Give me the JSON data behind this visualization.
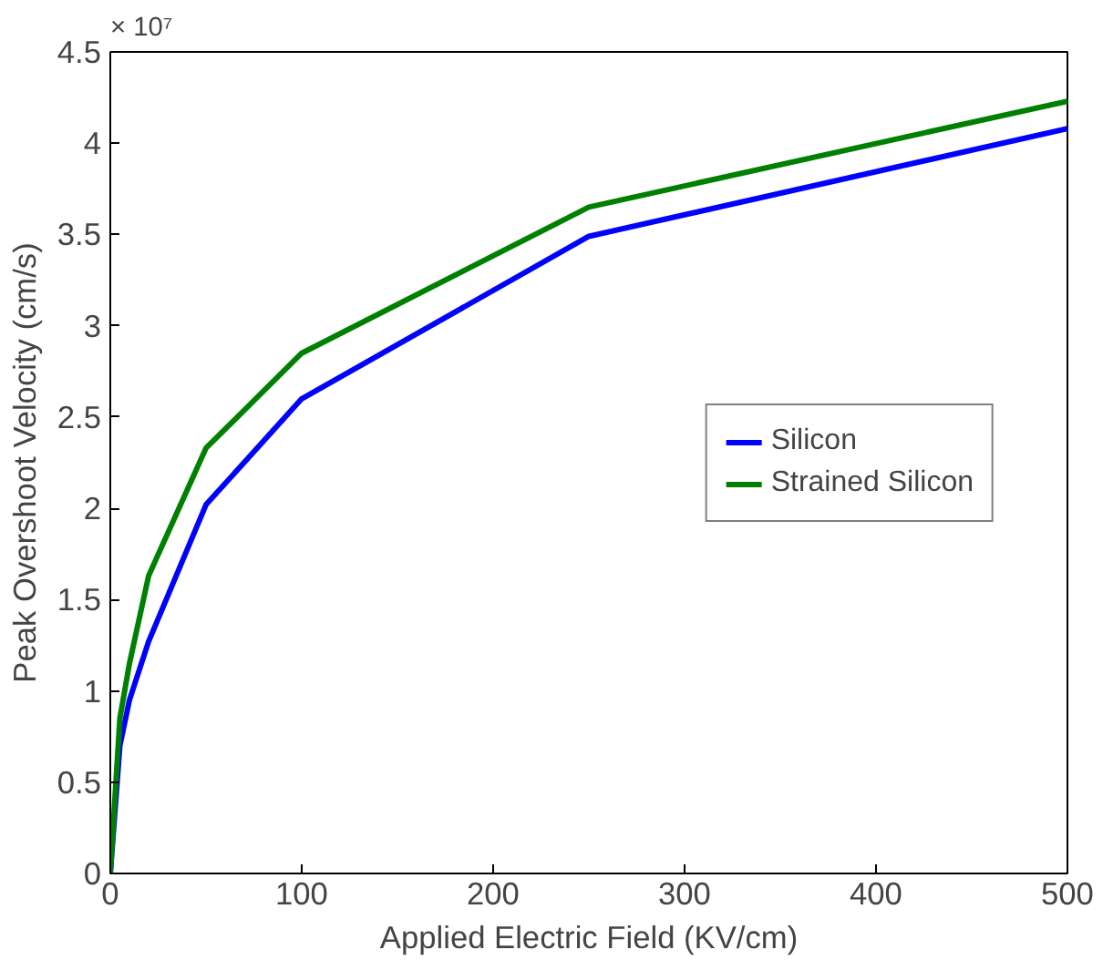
{
  "chart_data": {
    "type": "line",
    "xlabel": "Applied Electric Field (KV/cm)",
    "ylabel": "Peak Overshoot Velocity (cm/s)",
    "annotations": [
      "× 10⁷"
    ],
    "x": [
      0,
      5,
      10,
      20,
      50,
      100,
      250,
      500
    ],
    "series": [
      {
        "name": "Silicon",
        "color": "#0000ff",
        "values": [
          0,
          0.7,
          0.95,
          1.27,
          2.02,
          2.6,
          3.49,
          4.08
        ]
      },
      {
        "name": "Strained Silicon",
        "color": "#008000",
        "values": [
          0,
          0.85,
          1.15,
          1.63,
          2.33,
          2.85,
          3.65,
          4.23
        ]
      }
    ],
    "xlim": [
      0,
      500
    ],
    "xticks": [
      0,
      100,
      200,
      300,
      400,
      500
    ],
    "ylim": [
      0,
      4.5
    ],
    "yticks": [
      0,
      0.5,
      1,
      1.5,
      2,
      2.5,
      3,
      3.5,
      4,
      4.5
    ],
    "grid": false,
    "legend": "right",
    "line_style": "solid",
    "marker": "none"
  }
}
